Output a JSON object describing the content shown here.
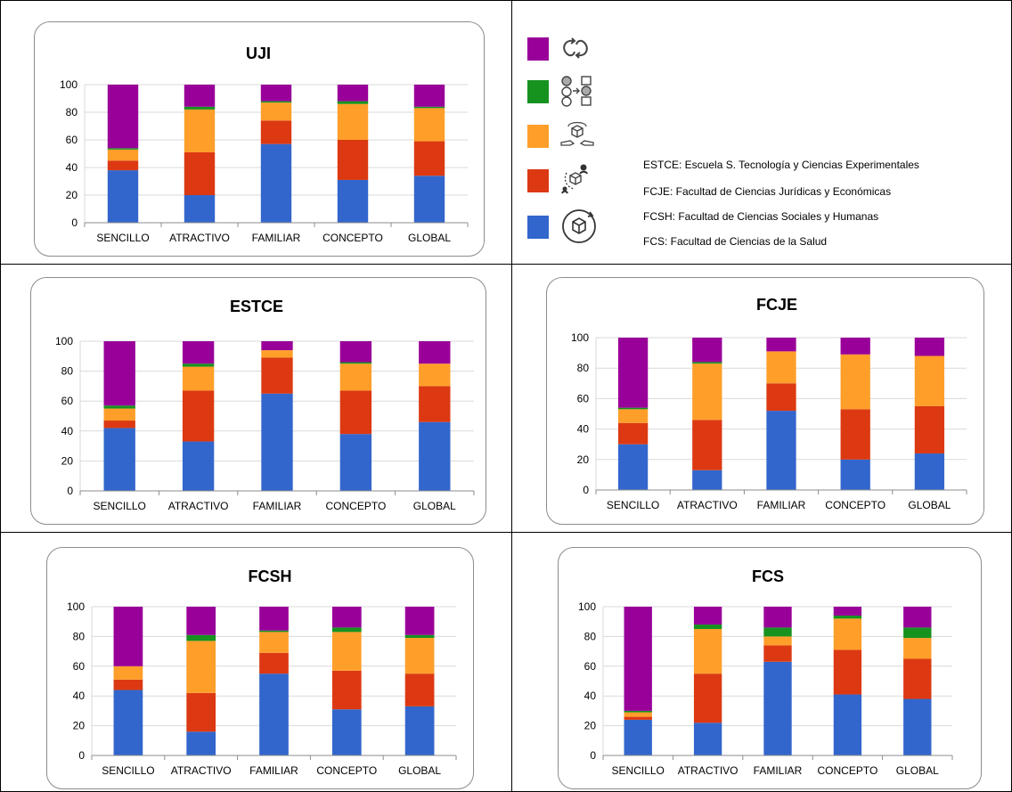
{
  "colors": {
    "blue": "#3366cc",
    "red": "#dc3912",
    "orange": "#ff9f2a",
    "green": "#16921f",
    "purple": "#990099"
  },
  "legend": {
    "items": [
      {
        "color": "#990099",
        "icon": "cycle-arrows-icon"
      },
      {
        "color": "#16921f",
        "icon": "circles-to-squares-icon"
      },
      {
        "color": "#ff9f2a",
        "icon": "hands-exchange-cube-icon"
      },
      {
        "color": "#dc3912",
        "icon": "person-cube-icon"
      },
      {
        "color": "#3366cc",
        "icon": "cube-rotate-icon"
      }
    ],
    "abbreviations": [
      "ESTCE: Escuela S. Tecnología y Ciencias Experimentales",
      "FCJE: Facultad de Ciencias Jurídicas y Económicas",
      "FCSH: Facultad de Ciencias Sociales y Humanas",
      "FCS: Facultad de Ciencias de la Salud"
    ]
  },
  "chart_data": [
    {
      "type": "bar",
      "stacked": true,
      "title": "UJI",
      "categories": [
        "SENCILLO",
        "ATRACTIVO",
        "FAMILIAR",
        "CONCEPTO",
        "GLOBAL"
      ],
      "ylim": [
        0,
        100
      ],
      "yticks": [
        "0",
        "20",
        "40",
        "60",
        "80",
        "100"
      ],
      "grid": true,
      "series": [
        {
          "color": "#3366cc",
          "values": [
            38,
            20,
            57,
            31,
            34
          ]
        },
        {
          "color": "#dc3912",
          "values": [
            7,
            31,
            17,
            29,
            25
          ]
        },
        {
          "color": "#ff9f2a",
          "values": [
            8,
            31,
            13,
            26,
            24
          ]
        },
        {
          "color": "#16921f",
          "values": [
            1,
            2,
            1,
            2,
            1
          ]
        },
        {
          "color": "#990099",
          "values": [
            46,
            16,
            12,
            12,
            16
          ]
        }
      ]
    },
    {
      "type": "bar",
      "stacked": true,
      "title": "ESTCE",
      "categories": [
        "SENCILLO",
        "ATRACTIVO",
        "FAMILIAR",
        "CONCEPTO",
        "GLOBAL"
      ],
      "ylim": [
        0,
        100
      ],
      "yticks": [
        "0",
        "20",
        "40",
        "60",
        "80",
        "100"
      ],
      "grid": true,
      "series": [
        {
          "color": "#3366cc",
          "values": [
            42,
            33,
            65,
            38,
            46
          ]
        },
        {
          "color": "#dc3912",
          "values": [
            5,
            34,
            24,
            29,
            24
          ]
        },
        {
          "color": "#ff9f2a",
          "values": [
            8,
            16,
            5,
            18,
            15
          ]
        },
        {
          "color": "#16921f",
          "values": [
            2,
            2,
            0,
            1,
            0
          ]
        },
        {
          "color": "#990099",
          "values": [
            43,
            15,
            6,
            14,
            15
          ]
        }
      ]
    },
    {
      "type": "bar",
      "stacked": true,
      "title": "FCJE",
      "categories": [
        "SENCILLO",
        "ATRACTIVO",
        "FAMILIAR",
        "CONCEPTO",
        "GLOBAL"
      ],
      "ylim": [
        0,
        100
      ],
      "yticks": [
        "0",
        "20",
        "40",
        "60",
        "80",
        "100"
      ],
      "grid": true,
      "series": [
        {
          "color": "#3366cc",
          "values": [
            30,
            13,
            52,
            20,
            24
          ]
        },
        {
          "color": "#dc3912",
          "values": [
            14,
            33,
            18,
            33,
            31
          ]
        },
        {
          "color": "#ff9f2a",
          "values": [
            9,
            37,
            21,
            36,
            33
          ]
        },
        {
          "color": "#16921f",
          "values": [
            1,
            1,
            0,
            0,
            0
          ]
        },
        {
          "color": "#990099",
          "values": [
            46,
            16,
            9,
            11,
            12
          ]
        }
      ]
    },
    {
      "type": "bar",
      "stacked": true,
      "title": "FCSH",
      "categories": [
        "SENCILLO",
        "ATRACTIVO",
        "FAMILIAR",
        "CONCEPTO",
        "GLOBAL"
      ],
      "ylim": [
        0,
        100
      ],
      "yticks": [
        "0",
        "20",
        "40",
        "60",
        "80",
        "100"
      ],
      "grid": true,
      "series": [
        {
          "color": "#3366cc",
          "values": [
            44,
            16,
            55,
            31,
            33
          ]
        },
        {
          "color": "#dc3912",
          "values": [
            7,
            26,
            14,
            26,
            22
          ]
        },
        {
          "color": "#ff9f2a",
          "values": [
            9,
            35,
            14,
            26,
            24
          ]
        },
        {
          "color": "#16921f",
          "values": [
            0,
            4,
            1,
            3,
            2
          ]
        },
        {
          "color": "#990099",
          "values": [
            40,
            19,
            16,
            14,
            19
          ]
        }
      ]
    },
    {
      "type": "bar",
      "stacked": true,
      "title": "FCS",
      "categories": [
        "SENCILLO",
        "ATRACTIVO",
        "FAMILIAR",
        "CONCEPTO",
        "GLOBAL"
      ],
      "ylim": [
        0,
        100
      ],
      "yticks": [
        "0",
        "20",
        "40",
        "60",
        "80",
        "100"
      ],
      "grid": true,
      "series": [
        {
          "color": "#3366cc",
          "values": [
            24,
            22,
            63,
            41,
            38
          ]
        },
        {
          "color": "#dc3912",
          "values": [
            2,
            33,
            11,
            30,
            27
          ]
        },
        {
          "color": "#ff9f2a",
          "values": [
            3,
            30,
            6,
            21,
            14
          ]
        },
        {
          "color": "#16921f",
          "values": [
            1,
            3,
            6,
            2,
            7
          ]
        },
        {
          "color": "#990099",
          "values": [
            70,
            12,
            14,
            6,
            14
          ]
        }
      ]
    }
  ]
}
